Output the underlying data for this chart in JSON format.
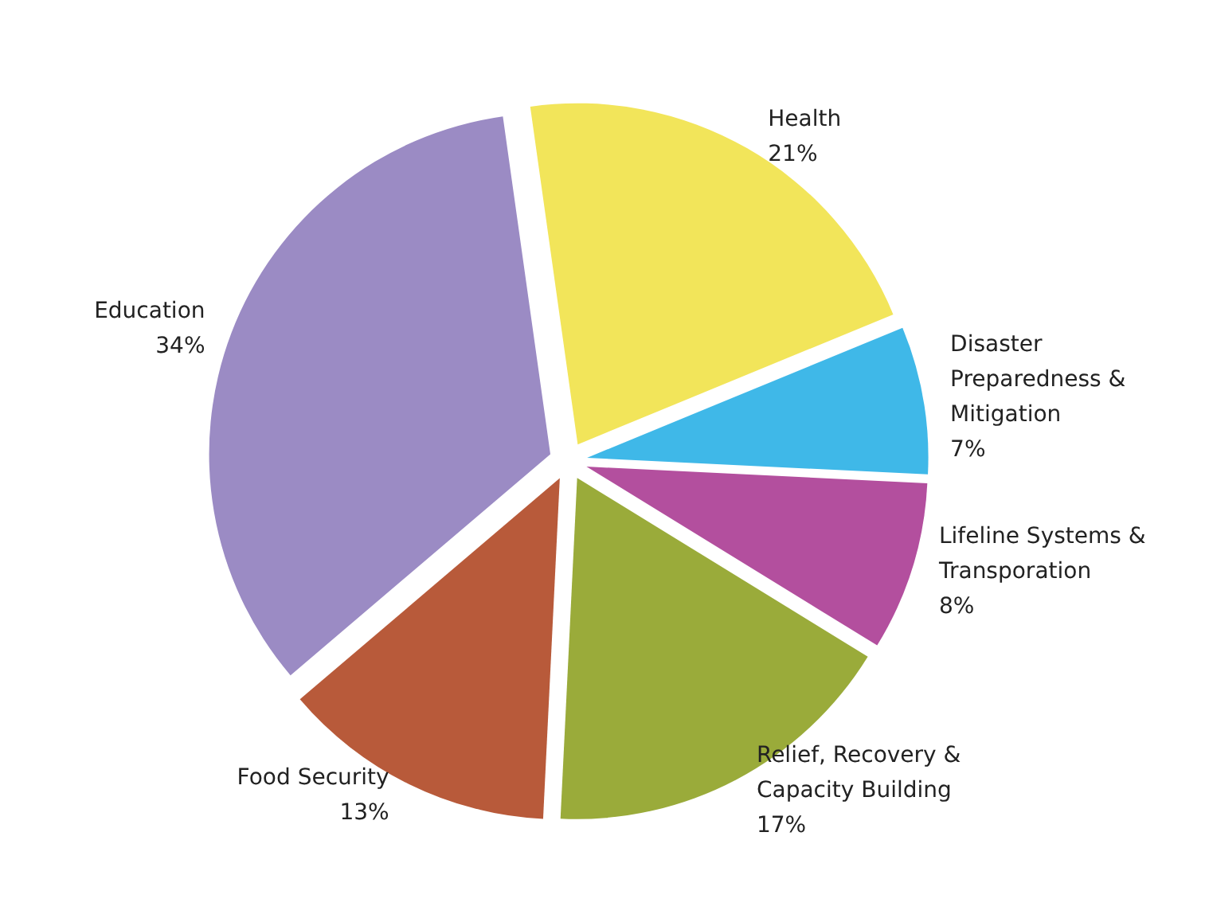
{
  "chart_data": {
    "type": "pie",
    "categories": [
      "Health",
      "Disaster Preparedness & Mitigation",
      "Lifeline Systems & Transporation",
      "Relief, Recovery & Capacity Building",
      "Food Security",
      "Education"
    ],
    "values": [
      21,
      7,
      8,
      17,
      13,
      34
    ],
    "colors": [
      "#f2e55a",
      "#3fb8e8",
      "#b34f9e",
      "#9aab3a",
      "#b85a3a",
      "#9b8bc4"
    ],
    "value_labels": [
      "21%",
      "7%",
      "8%",
      "17%",
      "13%",
      "34%"
    ]
  }
}
